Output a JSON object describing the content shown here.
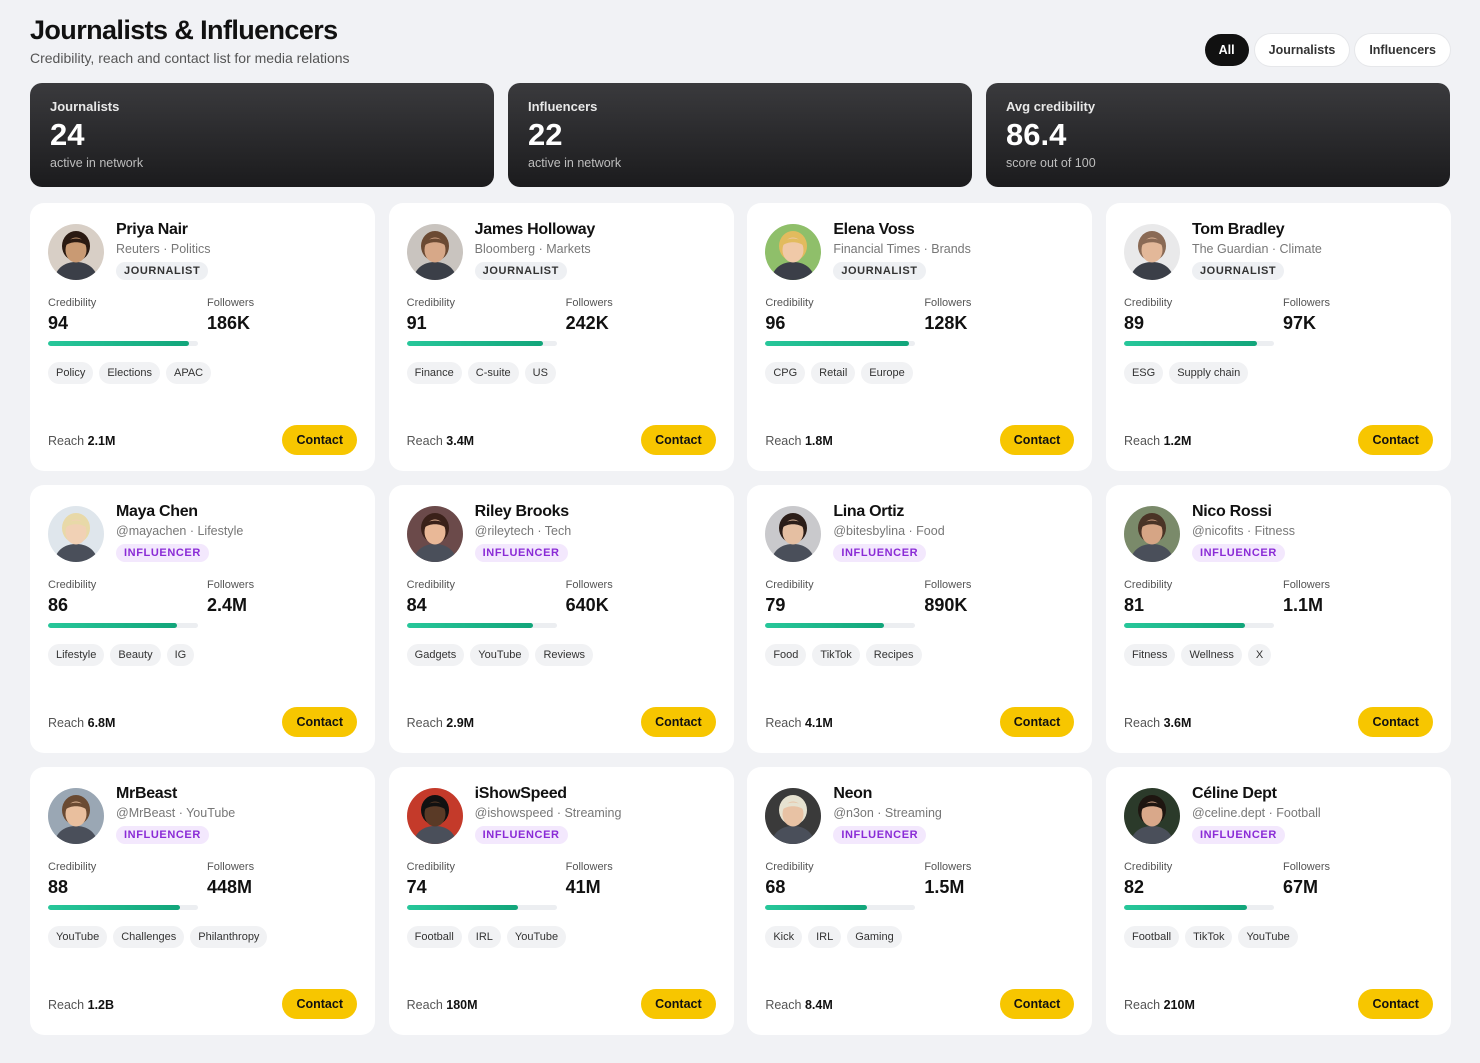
{
  "header": {
    "title": "Journalists & Influencers",
    "subtitle": "Credibility, reach and contact list for media relations"
  },
  "filters": [
    {
      "label": "All",
      "active": true
    },
    {
      "label": "Journalists",
      "active": false
    },
    {
      "label": "Influencers",
      "active": false
    }
  ],
  "stats": [
    {
      "label": "Journalists",
      "value": "24",
      "sub": "active in network"
    },
    {
      "label": "Influencers",
      "value": "22",
      "sub": "active in network"
    },
    {
      "label": "Avg credibility",
      "value": "86.4",
      "sub": "score out of 100"
    }
  ],
  "labels": {
    "credibility": "Credibility",
    "followers": "Followers",
    "reach": "Reach",
    "contact": "Contact"
  },
  "people": [
    {
      "name": "Priya Nair",
      "outlet": "Reuters · Politics",
      "type": "JOURNALIST",
      "credibility": "94",
      "credibility_pct": 94,
      "followers": "186K",
      "tags": [
        "Policy",
        "Elections",
        "APAC"
      ],
      "reach": "2.1M",
      "skin": "#c99a73",
      "hair": "#2a1a12",
      "bg": "#d8cfc6"
    },
    {
      "name": "James Holloway",
      "outlet": "Bloomberg · Markets",
      "type": "JOURNALIST",
      "credibility": "91",
      "credibility_pct": 91,
      "followers": "242K",
      "tags": [
        "Finance",
        "C-suite",
        "US"
      ],
      "reach": "3.4M",
      "skin": "#d7a888",
      "hair": "#6b4a33",
      "bg": "#c9c4bf"
    },
    {
      "name": "Elena Voss",
      "outlet": "Financial Times · Brands",
      "type": "JOURNALIST",
      "credibility": "96",
      "credibility_pct": 96,
      "followers": "128K",
      "tags": [
        "CPG",
        "Retail",
        "Europe"
      ],
      "reach": "1.8M",
      "skin": "#f0c9a8",
      "hair": "#e2bb5e",
      "bg": "#8fbf6a"
    },
    {
      "name": "Tom Bradley",
      "outlet": "The Guardian · Climate",
      "type": "JOURNALIST",
      "credibility": "89",
      "credibility_pct": 89,
      "followers": "97K",
      "tags": [
        "ESG",
        "Supply chain"
      ],
      "reach": "1.2M",
      "skin": "#e3b899",
      "hair": "#8a6a55",
      "bg": "#e9e9ea"
    },
    {
      "name": "Maya Chen",
      "outlet": "@mayachen · Lifestyle",
      "type": "INFLUENCER",
      "credibility": "86",
      "credibility_pct": 86,
      "followers": "2.4M",
      "tags": [
        "Lifestyle",
        "Beauty",
        "IG"
      ],
      "reach": "6.8M",
      "skin": "#f1d1b5",
      "hair": "#e8d9a8",
      "bg": "#dfe6ec"
    },
    {
      "name": "Riley Brooks",
      "outlet": "@rileytech · Tech",
      "type": "INFLUENCER",
      "credibility": "84",
      "credibility_pct": 84,
      "followers": "640K",
      "tags": [
        "Gadgets",
        "YouTube",
        "Reviews"
      ],
      "reach": "2.9M",
      "skin": "#e9b897",
      "hair": "#3a2119",
      "bg": "#6b4a4a"
    },
    {
      "name": "Lina Ortiz",
      "outlet": "@bitesbylina · Food",
      "type": "INFLUENCER",
      "credibility": "79",
      "credibility_pct": 79,
      "followers": "890K",
      "tags": [
        "Food",
        "TikTok",
        "Recipes"
      ],
      "reach": "4.1M",
      "skin": "#e5bfa2",
      "hair": "#2b1d18",
      "bg": "#c9c9cc"
    },
    {
      "name": "Nico Rossi",
      "outlet": "@nicofits · Fitness",
      "type": "INFLUENCER",
      "credibility": "81",
      "credibility_pct": 81,
      "followers": "1.1M",
      "tags": [
        "Fitness",
        "Wellness",
        "X"
      ],
      "reach": "3.6M",
      "skin": "#d6a585",
      "hair": "#4a3426",
      "bg": "#7a8a6a"
    },
    {
      "name": "MrBeast",
      "outlet": "@MrBeast · YouTube",
      "type": "INFLUENCER",
      "credibility": "88",
      "credibility_pct": 88,
      "followers": "448M",
      "tags": [
        "YouTube",
        "Challenges",
        "Philanthropy"
      ],
      "reach": "1.2B",
      "skin": "#e9bf9e",
      "hair": "#6a4a32",
      "bg": "#9aa7b4"
    },
    {
      "name": "iShowSpeed",
      "outlet": "@ishowspeed · Streaming",
      "type": "INFLUENCER",
      "credibility": "74",
      "credibility_pct": 74,
      "followers": "41M",
      "tags": [
        "Football",
        "IRL",
        "YouTube"
      ],
      "reach": "180M",
      "skin": "#5a3a26",
      "hair": "#111111",
      "bg": "#c43a2a"
    },
    {
      "name": "Neon",
      "outlet": "@n3on · Streaming",
      "type": "INFLUENCER",
      "credibility": "68",
      "credibility_pct": 68,
      "followers": "1.5M",
      "tags": [
        "Kick",
        "IRL",
        "Gaming"
      ],
      "reach": "8.4M",
      "skin": "#e8c2a4",
      "hair": "#e6e2d0",
      "bg": "#3a3a3a"
    },
    {
      "name": "Céline Dept",
      "outlet": "@celine.dept · Football",
      "type": "INFLUENCER",
      "credibility": "82",
      "credibility_pct": 82,
      "followers": "67M",
      "tags": [
        "Football",
        "TikTok",
        "YouTube"
      ],
      "reach": "210M",
      "skin": "#d9a88a",
      "hair": "#1e1510",
      "bg": "#2b3a2a"
    }
  ]
}
